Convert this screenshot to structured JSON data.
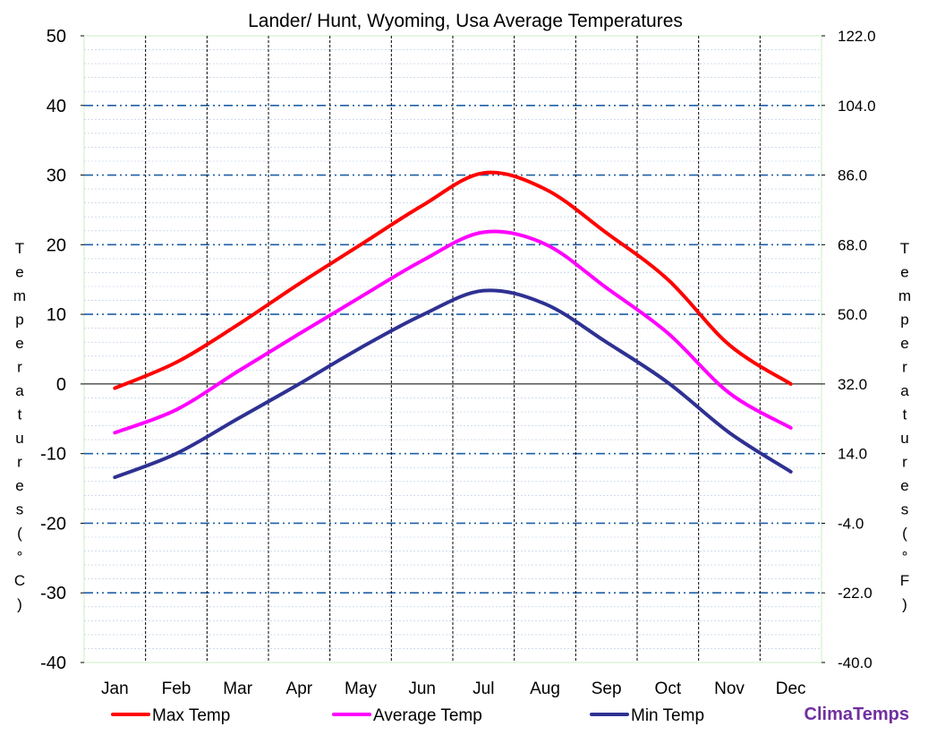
{
  "chart_data": {
    "type": "line",
    "title": "Lander/ Hunt, Wyoming, Usa Average Temperatures",
    "ylabel_left": "Temperatures (°C)",
    "ylabel_right": "Temperatures (°F)",
    "categories": [
      "Jan",
      "Feb",
      "Mar",
      "Apr",
      "May",
      "Jun",
      "Jul",
      "Aug",
      "Sep",
      "Oct",
      "Nov",
      "Dec"
    ],
    "ylim": [
      -40,
      50
    ],
    "yticks": [
      "-40",
      "-30",
      "-20",
      "-10",
      "0",
      "10",
      "20",
      "30",
      "40",
      "50"
    ],
    "yticks_right": [
      "-40.0",
      "-22.0",
      "-4.0",
      "14.0",
      "32.0",
      "50.0",
      "68.0",
      "86.0",
      "104.0",
      "122.0"
    ],
    "grid": true,
    "legend_position": "bottom",
    "series": [
      {
        "name": "Max Temp",
        "color": "#ff0000",
        "values": [
          -0.6,
          3.1,
          8.5,
          14.4,
          20.0,
          25.6,
          30.3,
          28.0,
          21.7,
          15.0,
          5.6,
          0.0
        ]
      },
      {
        "name": "Average Temp",
        "color": "#ff00ff",
        "values": [
          -7.0,
          -3.7,
          1.8,
          7.2,
          12.5,
          17.7,
          21.8,
          20.1,
          13.8,
          7.3,
          -1.3,
          -6.3
        ]
      },
      {
        "name": "Min Temp",
        "color": "#2e3192",
        "values": [
          -13.4,
          -10.0,
          -5.0,
          0.0,
          5.2,
          9.9,
          13.4,
          11.5,
          6.0,
          0.2,
          -7.0,
          -12.6
        ]
      }
    ],
    "watermark": "ClimaTemps"
  }
}
